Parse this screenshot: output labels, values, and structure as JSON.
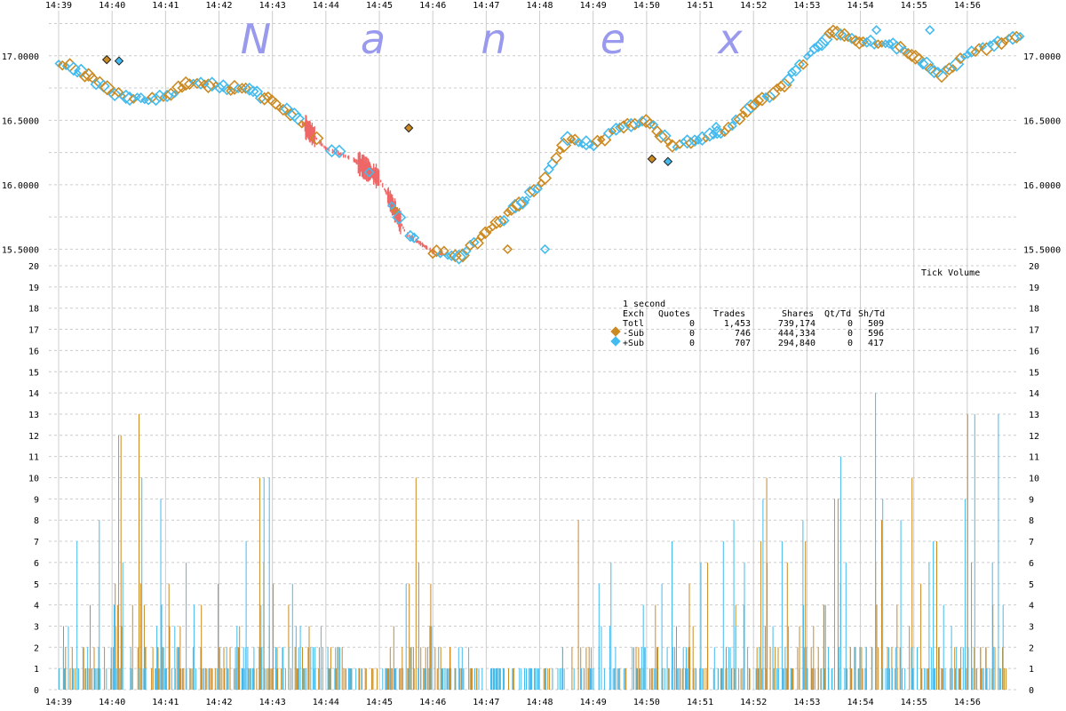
{
  "watermark": [
    "N",
    "a",
    "n",
    "e",
    "x"
  ],
  "colors": {
    "minus_sub": "#cc8a22",
    "plus_sub": "#44bbee",
    "nbbo_band": "#ee6666",
    "grid": "#cccccc"
  },
  "chart_data": [
    {
      "type": "scatter",
      "x_ticks": [
        "14:39",
        "14:40",
        "14:41",
        "14:42",
        "14:43",
        "14:44",
        "14:45",
        "14:46",
        "14:47",
        "14:48",
        "14:49",
        "14:50",
        "14:51",
        "14:52",
        "14:53",
        "14:54",
        "14:55",
        "14:56"
      ],
      "y_ticks": [
        "15.5000",
        "16.0000",
        "16.5000",
        "17.0000"
      ],
      "ylim": [
        15.42,
        17.35
      ],
      "price_path": [
        [
          0,
          16.95
        ],
        [
          0.5,
          16.85
        ],
        [
          1,
          16.72
        ],
        [
          1.5,
          16.66
        ],
        [
          2,
          16.68
        ],
        [
          2.5,
          16.8
        ],
        [
          3,
          16.75
        ],
        [
          3.5,
          16.74
        ],
        [
          4,
          16.65
        ],
        [
          4.5,
          16.5
        ],
        [
          5,
          16.28
        ],
        [
          5.5,
          16.2
        ],
        [
          6,
          16.05
        ],
        [
          6.5,
          15.62
        ],
        [
          7,
          15.48
        ],
        [
          7.5,
          15.45
        ],
        [
          8,
          15.62
        ],
        [
          8.5,
          15.8
        ],
        [
          9,
          16.0
        ],
        [
          9.5,
          16.35
        ],
        [
          10,
          16.3
        ],
        [
          10.5,
          16.45
        ],
        [
          11,
          16.5
        ],
        [
          11.5,
          16.3
        ],
        [
          12,
          16.35
        ],
        [
          12.5,
          16.42
        ],
        [
          13,
          16.62
        ],
        [
          13.5,
          16.75
        ],
        [
          14,
          16.98
        ],
        [
          14.5,
          17.2
        ],
        [
          15,
          17.1
        ],
        [
          15.5,
          17.1
        ],
        [
          16,
          17.0
        ],
        [
          16.5,
          16.85
        ],
        [
          17,
          17.0
        ],
        [
          17.5,
          17.1
        ],
        [
          18,
          17.14
        ]
      ],
      "minus_sub_outliers": [
        [
          0.9,
          16.97
        ],
        [
          6.55,
          16.44
        ],
        [
          11.1,
          16.2
        ],
        [
          8.4,
          15.5
        ]
      ],
      "plus_sub_outliers": [
        [
          1.13,
          16.96
        ],
        [
          11.4,
          16.18
        ],
        [
          12.3,
          16.45
        ],
        [
          15.3,
          17.2
        ],
        [
          16.3,
          17.2
        ],
        [
          9.1,
          15.5
        ]
      ]
    },
    {
      "type": "bar",
      "title": "Tick Volume",
      "x_ticks": [
        "14:39",
        "14:40",
        "14:41",
        "14:42",
        "14:43",
        "14:44",
        "14:45",
        "14:46",
        "14:47",
        "14:48",
        "14:49",
        "14:50",
        "14:51",
        "14:52",
        "14:53",
        "14:54",
        "14:55",
        "14:56"
      ],
      "y_ticks": [
        "0",
        "1",
        "2",
        "3",
        "4",
        "5",
        "6",
        "7",
        "8",
        "9",
        "10",
        "11",
        "12",
        "13",
        "14",
        "15",
        "16",
        "17",
        "18",
        "19",
        "20"
      ],
      "ylim": [
        0,
        20
      ],
      "series": [
        {
          "name": "-Sub",
          "values": [
            3,
            4,
            5,
            12,
            13,
            5,
            3,
            4,
            2,
            3,
            10,
            5,
            4,
            3,
            2,
            1,
            1,
            3,
            10,
            5,
            2,
            1,
            0,
            1,
            0,
            1,
            0,
            8,
            0,
            1,
            2,
            4,
            3,
            5,
            6,
            4,
            7,
            10,
            6,
            7,
            9,
            5,
            6,
            8,
            10,
            5,
            7,
            13,
            6,
            4
          ]
        },
        {
          "name": "+Sub",
          "values": [
            7,
            2,
            8,
            12,
            10,
            9,
            6,
            4,
            5,
            7,
            10,
            10,
            5,
            3,
            2,
            1,
            0,
            1,
            5,
            3,
            1,
            2,
            1,
            1,
            1,
            1,
            2,
            1,
            5,
            6,
            4,
            5,
            7,
            6,
            7,
            8,
            6,
            9,
            7,
            8,
            9,
            11,
            14,
            9,
            8,
            6,
            7,
            9,
            13,
            13
          ]
        }
      ],
      "legend": {
        "period": "1 second",
        "headers": [
          "Exch",
          "Quotes",
          "Trades",
          "Shares",
          "Qt/Td",
          "Sh/Td"
        ],
        "rows": [
          [
            "Totl",
            "0",
            "1,453",
            "739,174",
            "0",
            "509"
          ],
          [
            "-Sub",
            "0",
            "746",
            "444,334",
            "0",
            "596"
          ],
          [
            "+Sub",
            "0",
            "707",
            "294,840",
            "0",
            "417"
          ]
        ]
      }
    }
  ]
}
